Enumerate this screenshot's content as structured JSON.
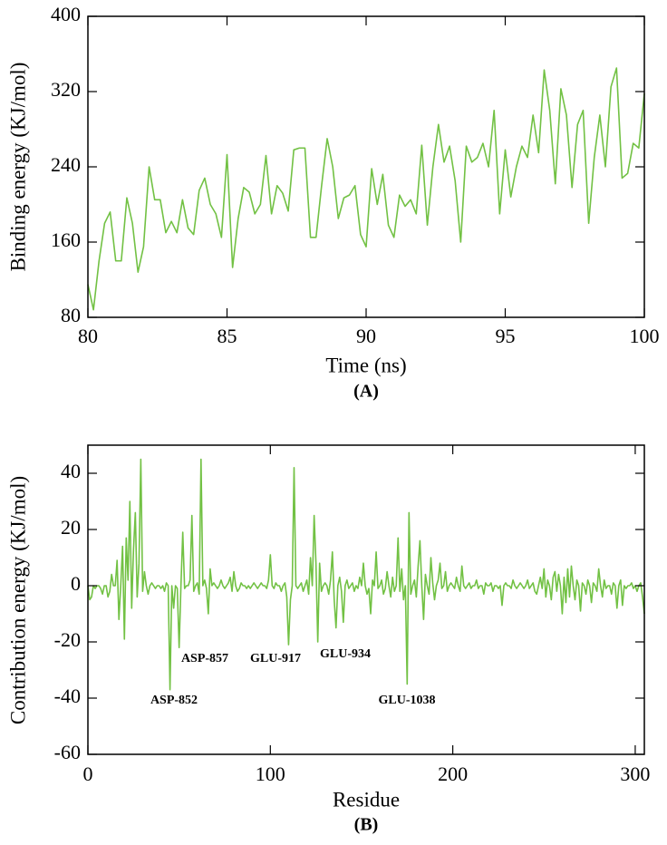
{
  "chart_data": [
    {
      "type": "line",
      "xlabel": "Time (ns)",
      "ylabel": "Binding energy (KJ/mol)",
      "caption": "(A)",
      "color": "#72c144",
      "x": [
        80,
        80.2,
        80.4,
        80.6,
        80.8,
        81,
        81.2,
        81.4,
        81.6,
        81.8,
        82,
        82.2,
        82.4,
        82.6,
        82.8,
        83,
        83.2,
        83.4,
        83.6,
        83.8,
        84,
        84.2,
        84.4,
        84.6,
        84.8,
        85,
        85.2,
        85.4,
        85.6,
        85.8,
        86,
        86.2,
        86.4,
        86.6,
        86.8,
        87,
        87.2,
        87.4,
        87.6,
        87.8,
        88,
        88.2,
        88.4,
        88.6,
        88.8,
        89,
        89.2,
        89.4,
        89.6,
        89.8,
        90,
        90.2,
        90.4,
        90.6,
        90.8,
        91,
        91.2,
        91.4,
        91.6,
        91.8,
        92,
        92.2,
        92.4,
        92.6,
        92.8,
        93,
        93.2,
        93.4,
        93.6,
        93.8,
        94,
        94.2,
        94.4,
        94.6,
        94.8,
        95,
        95.2,
        95.4,
        95.6,
        95.8,
        96,
        96.2,
        96.4,
        96.6,
        96.8,
        97,
        97.2,
        97.4,
        97.6,
        97.8,
        98,
        98.2,
        98.4,
        98.6,
        98.8,
        99,
        99.2,
        99.4,
        99.6,
        99.8,
        100
      ],
      "values": [
        115,
        88,
        140,
        180,
        192,
        140,
        140,
        207,
        180,
        128,
        155,
        240,
        205,
        205,
        170,
        182,
        170,
        205,
        175,
        168,
        215,
        228,
        200,
        190,
        165,
        253,
        133,
        185,
        218,
        213,
        190,
        200,
        252,
        190,
        220,
        212,
        193,
        258,
        260,
        260,
        165,
        165,
        220,
        270,
        240,
        185,
        207,
        210,
        220,
        168,
        155,
        238,
        200,
        232,
        178,
        165,
        210,
        198,
        205,
        190,
        263,
        178,
        240,
        285,
        245,
        262,
        225,
        160,
        262,
        245,
        250,
        265,
        240,
        300,
        190,
        258,
        208,
        240,
        262,
        250,
        295,
        255,
        343,
        300,
        222,
        323,
        295,
        218,
        285,
        300,
        180,
        250,
        295,
        240,
        325,
        345,
        228,
        233,
        265,
        260,
        318
      ],
      "xlim": [
        80,
        100
      ],
      "xticks": [
        80,
        85,
        90,
        95,
        100
      ],
      "ylim": [
        80,
        400
      ],
      "yticks": [
        80,
        160,
        240,
        320,
        400
      ]
    },
    {
      "type": "line",
      "xlabel": "Residue",
      "ylabel": "Contribution energy (KJ/mol)",
      "caption": "(B)",
      "color": "#72c144",
      "annotations": [
        "ASP-857",
        "ASP-852",
        "GLU-917",
        "GLU-934",
        "GLU-1038"
      ],
      "x": [
        0,
        1,
        2,
        3,
        4,
        5,
        6,
        7,
        8,
        9,
        10,
        11,
        12,
        13,
        14,
        15,
        16,
        17,
        18,
        19,
        20,
        21,
        22,
        23,
        24,
        25,
        26,
        27,
        28,
        29,
        30,
        31,
        32,
        33,
        34,
        35,
        36,
        37,
        38,
        39,
        40,
        41,
        42,
        43,
        44,
        45,
        46,
        47,
        48,
        49,
        50,
        51,
        52,
        53,
        54,
        55,
        56,
        57,
        58,
        59,
        60,
        61,
        62,
        63,
        64,
        65,
        66,
        67,
        68,
        69,
        70,
        71,
        72,
        73,
        74,
        75,
        76,
        77,
        78,
        79,
        80,
        81,
        82,
        83,
        84,
        85,
        86,
        87,
        88,
        89,
        90,
        91,
        92,
        93,
        94,
        95,
        96,
        97,
        98,
        99,
        100,
        101,
        102,
        103,
        104,
        105,
        106,
        107,
        108,
        109,
        110,
        111,
        112,
        113,
        114,
        115,
        116,
        117,
        118,
        119,
        120,
        121,
        122,
        123,
        124,
        125,
        126,
        127,
        128,
        129,
        130,
        131,
        132,
        133,
        134,
        135,
        136,
        137,
        138,
        139,
        140,
        141,
        142,
        143,
        144,
        145,
        146,
        147,
        148,
        149,
        150,
        151,
        152,
        153,
        154,
        155,
        156,
        157,
        158,
        159,
        160,
        161,
        162,
        163,
        164,
        165,
        166,
        167,
        168,
        169,
        170,
        171,
        172,
        173,
        174,
        175,
        176,
        177,
        178,
        179,
        180,
        181,
        182,
        183,
        184,
        185,
        186,
        187,
        188,
        189,
        190,
        191,
        192,
        193,
        194,
        195,
        196,
        197,
        198,
        199,
        200,
        201,
        202,
        203,
        204,
        205,
        206,
        207,
        208,
        209,
        210,
        211,
        212,
        213,
        214,
        215,
        216,
        217,
        218,
        219,
        220,
        221,
        222,
        223,
        224,
        225,
        226,
        227,
        228,
        229,
        230,
        231,
        232,
        233,
        234,
        235,
        236,
        237,
        238,
        239,
        240,
        241,
        242,
        243,
        244,
        245,
        246,
        247,
        248,
        249,
        250,
        251,
        252,
        253,
        254,
        255,
        256,
        257,
        258,
        259,
        260,
        261,
        262,
        263,
        264,
        265,
        266,
        267,
        268,
        269,
        270,
        271,
        272,
        273,
        274,
        275,
        276,
        277,
        278,
        279,
        280,
        281,
        282,
        283,
        284,
        285,
        286,
        287,
        288,
        289,
        290,
        291,
        292,
        293,
        294,
        295,
        296,
        297,
        298,
        299,
        300,
        301,
        302,
        303,
        304,
        305
      ],
      "values": [
        0,
        -5,
        -4,
        0,
        -1,
        0,
        0,
        -1,
        -3,
        0,
        0,
        -4,
        -2,
        4,
        0,
        0,
        9,
        -12,
        0,
        14,
        -19,
        17,
        2,
        30,
        -8,
        13,
        26,
        -4,
        8,
        45,
        -2,
        5,
        0,
        -3,
        0,
        1,
        0,
        -1,
        0,
        0,
        -1,
        0,
        -2,
        1,
        0,
        -37,
        0,
        -8,
        0,
        -1,
        -22,
        0,
        19,
        -1,
        0,
        0,
        2,
        25,
        -2,
        0,
        1,
        -3,
        45,
        0,
        2,
        -1,
        -10,
        6,
        0,
        1,
        0,
        -1,
        0,
        2,
        0,
        -1,
        0,
        1,
        3,
        -2,
        5,
        0,
        -2,
        -1,
        1,
        0,
        0,
        -1,
        0,
        -1,
        0,
        1,
        0,
        -1,
        0,
        1,
        0,
        0,
        -1,
        2,
        11,
        0,
        -1,
        1,
        0,
        0,
        -2,
        0,
        1,
        -4,
        -21,
        -5,
        0,
        42,
        0,
        -1,
        0,
        1,
        -2,
        0,
        2,
        -3,
        10,
        0,
        25,
        8,
        -20,
        8,
        -2,
        0,
        1,
        0,
        -3,
        2,
        12,
        -5,
        -15,
        0,
        3,
        -2,
        -13,
        0,
        2,
        -1,
        0,
        1,
        -2,
        0,
        -1,
        3,
        0,
        8,
        0,
        -3,
        -1,
        -10,
        2,
        0,
        12,
        -1,
        0,
        2,
        -3,
        -1,
        5,
        0,
        -4,
        3,
        -2,
        0,
        17,
        -2,
        6,
        -5,
        0,
        -35,
        26,
        -3,
        0,
        2,
        -4,
        7,
        16,
        0,
        -12,
        4,
        0,
        -3,
        10,
        1,
        -5,
        0,
        2,
        8,
        -1,
        0,
        5,
        -2,
        0,
        1,
        0,
        -1,
        3,
        0,
        -2,
        7,
        0,
        -1,
        0,
        1,
        -1,
        0,
        0,
        2,
        -1,
        0,
        0,
        -3,
        1,
        0,
        0,
        1,
        -2,
        0,
        0,
        -1,
        0,
        -7,
        0,
        1,
        0,
        0,
        -1,
        2,
        0,
        -1,
        0,
        1,
        0,
        -1,
        0,
        2,
        -1,
        0,
        1,
        -2,
        -3,
        0,
        3,
        -1,
        6,
        -4,
        2,
        0,
        -5,
        3,
        5,
        -2,
        4,
        0,
        -10,
        3,
        -6,
        6,
        -4,
        7,
        0,
        -5,
        2,
        0,
        -9,
        1,
        0,
        -3,
        2,
        0,
        -6,
        1,
        0,
        -2,
        6,
        0,
        -4,
        2,
        -1,
        0,
        0,
        -3,
        1,
        0,
        -8,
        0,
        2,
        -7,
        0,
        -1,
        0,
        0,
        1,
        -1,
        0,
        -2,
        0,
        1,
        -4,
        -10
      ],
      "xlim": [
        0,
        305
      ],
      "xticks": [
        0,
        100,
        200,
        300
      ],
      "ylim": [
        -60,
        50
      ],
      "yticks": [
        -60,
        -40,
        -20,
        0,
        20,
        40
      ]
    }
  ]
}
